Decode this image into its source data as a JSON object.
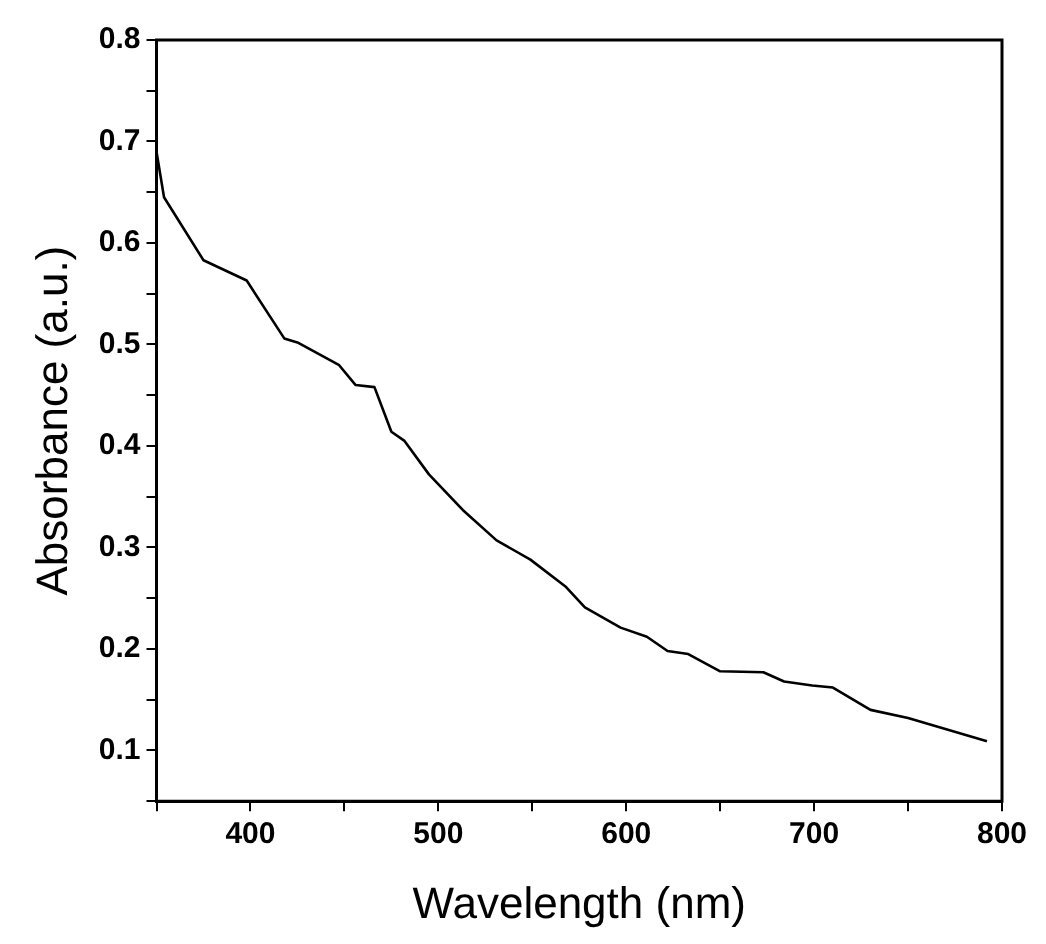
{
  "chart_data": {
    "type": "line",
    "xlabel": "Wavelength (nm)",
    "ylabel": "Absorbance (a.u.)",
    "x": [
      350,
      354,
      375,
      398,
      418,
      425,
      447,
      456,
      466,
      475,
      482,
      495,
      513,
      531,
      549,
      568,
      578,
      597,
      611,
      622,
      633,
      650,
      673,
      684,
      699,
      710,
      730,
      750,
      792
    ],
    "series": [
      {
        "color": "#000000",
        "values": [
          0.69,
          0.645,
          0.583,
          0.563,
          0.506,
          0.502,
          0.48,
          0.46,
          0.458,
          0.414,
          0.405,
          0.372,
          0.337,
          0.307,
          0.288,
          0.261,
          0.241,
          0.221,
          0.212,
          0.198,
          0.195,
          0.178,
          0.177,
          0.168,
          0.164,
          0.162,
          0.14,
          0.132,
          0.109
        ]
      }
    ],
    "xlim": [
      350,
      800
    ],
    "ylim": [
      0.05,
      0.8
    ],
    "xticks": [
      {
        "value": 350,
        "label": null
      },
      400,
      {
        "value": 450,
        "label": null
      },
      500,
      {
        "value": 550,
        "label": null
      },
      600,
      {
        "value": 650,
        "label": null
      },
      700,
      {
        "value": 750,
        "label": null
      },
      800
    ],
    "yticks": [
      {
        "value": 0.05,
        "label": null
      },
      0.1,
      {
        "value": 0.15,
        "label": null
      },
      0.2,
      {
        "value": 0.25,
        "label": null
      },
      0.3,
      {
        "value": 0.35,
        "label": null
      },
      0.4,
      {
        "value": 0.45,
        "label": null
      },
      0.5,
      {
        "value": 0.55,
        "label": null
      },
      0.6,
      {
        "value": 0.65,
        "label": null
      },
      0.7,
      {
        "value": 0.75,
        "label": null
      },
      0.8
    ],
    "grid": false,
    "legend": false,
    "marker": "none",
    "line_style": "solid"
  }
}
